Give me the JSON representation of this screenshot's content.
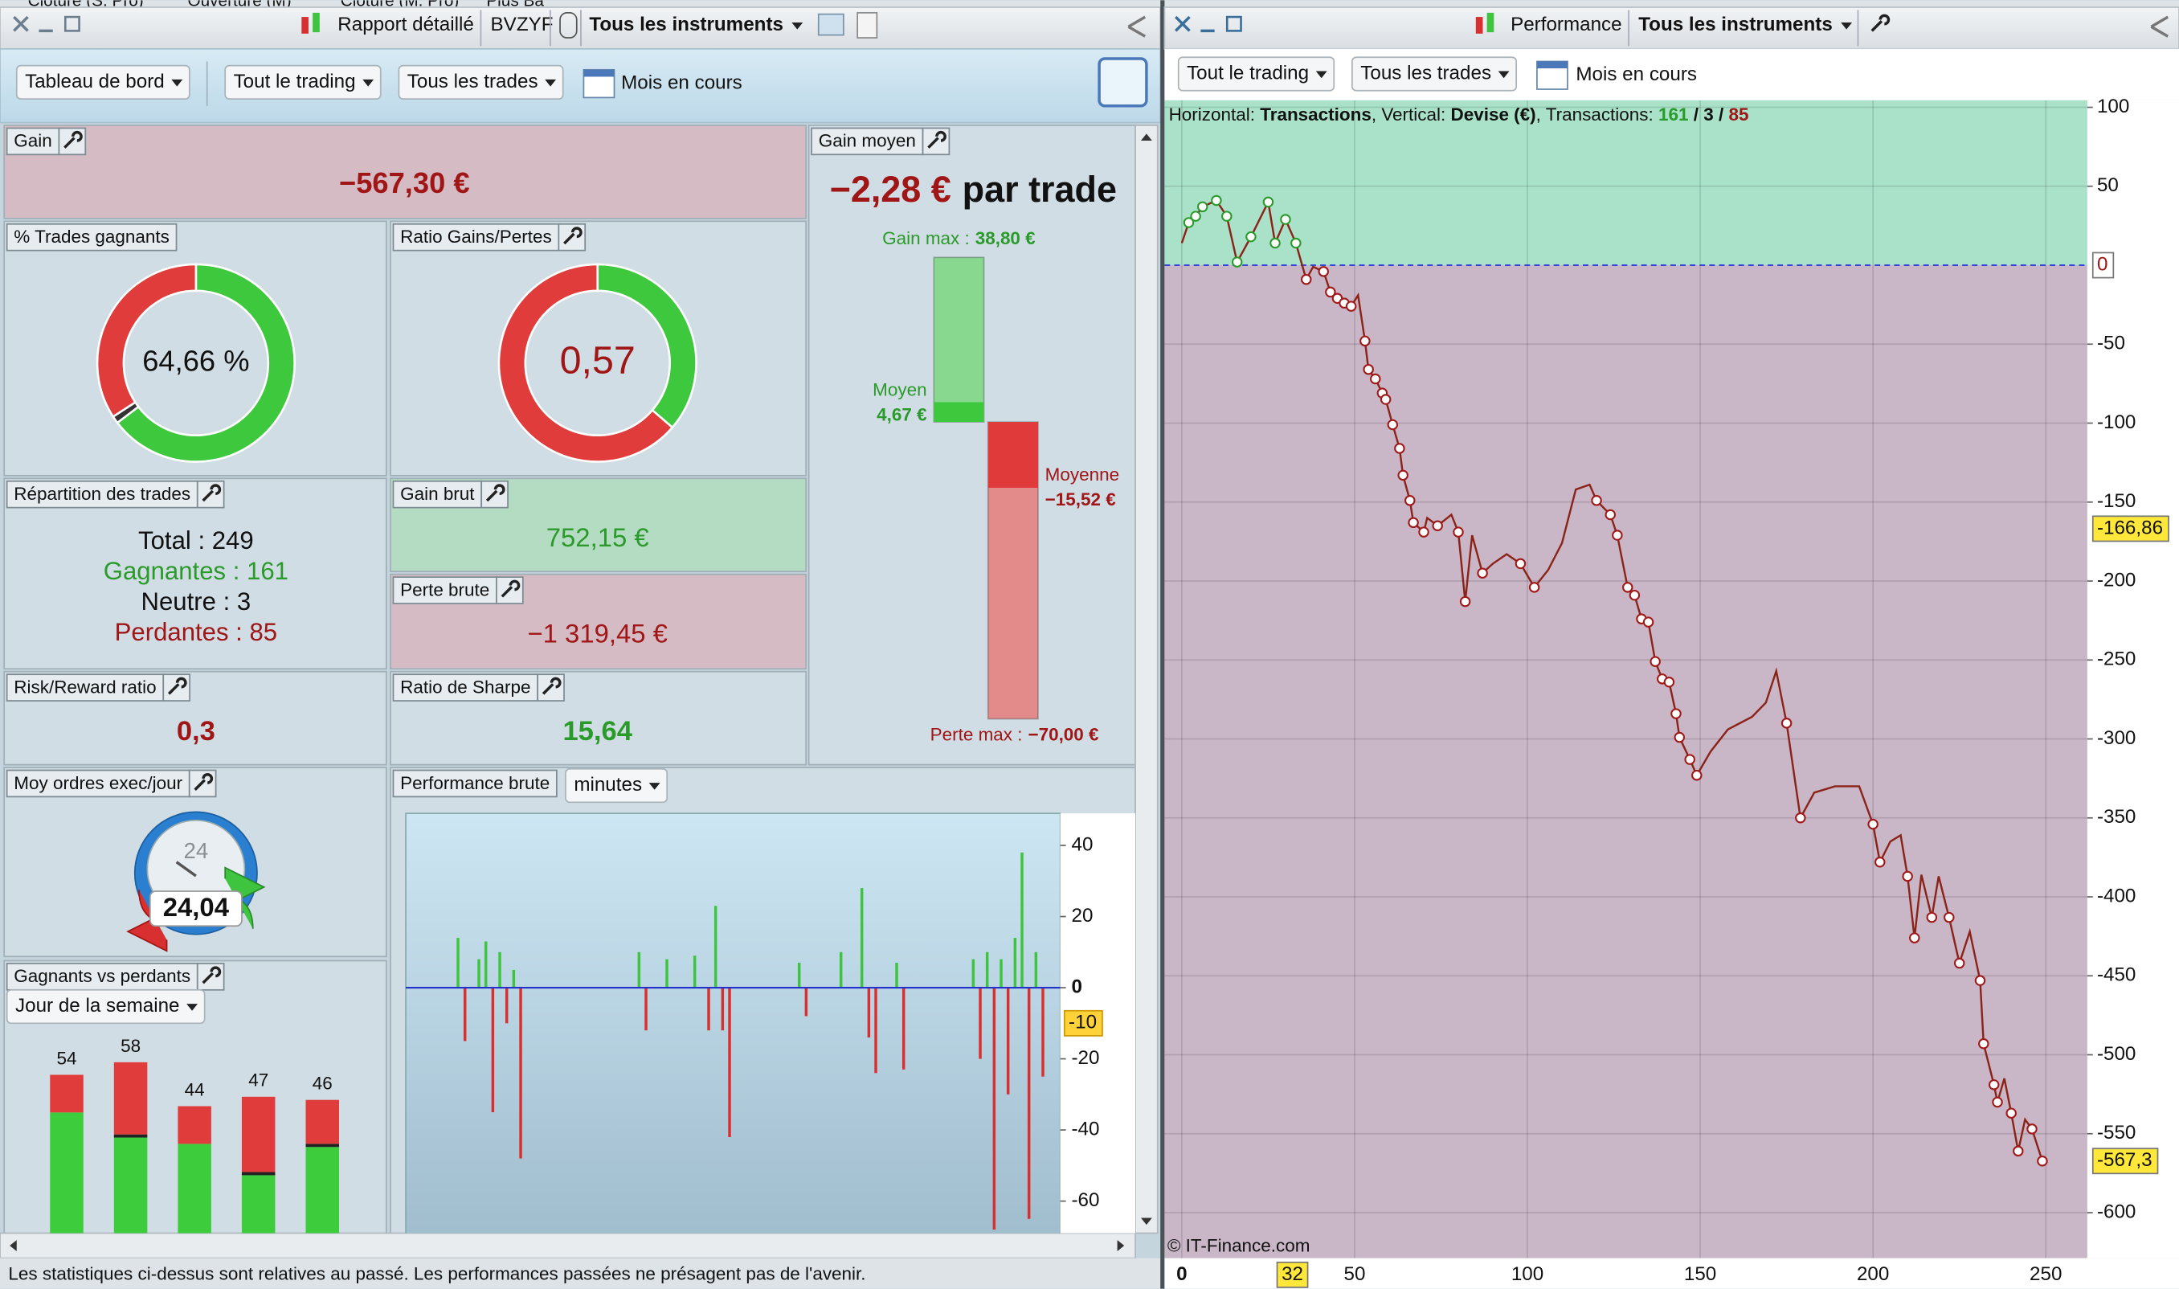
{
  "window_strip": [
    "Clôture (S. Pro)",
    "Ouverture (M)",
    "Clôture (M. Pro)",
    "Plus Ba"
  ],
  "left": {
    "tabs": [
      "Rapport détaillé",
      "BVZYF",
      "Tous les instruments"
    ],
    "filters": [
      "Tableau de bord",
      "Tout le trading",
      "Tous les trades"
    ],
    "period": "Mois en cours",
    "gain": {
      "title": "Gain",
      "value": "−567,30 €"
    },
    "gain_moyen": {
      "title": "Gain moyen",
      "value": "−2,28 €",
      "suffix": "par trade"
    },
    "win_rate": {
      "title": "% Trades gagnants"
    },
    "ratio": {
      "title": "Ratio Gains/Pertes"
    },
    "repartition": {
      "title": "Répartition des trades",
      "lines": [
        "Total : 249",
        "Gagnantes : 161",
        "Neutre : 3",
        "Perdantes : 85"
      ]
    },
    "gain_brut": {
      "title": "Gain brut",
      "value": "752,15 €"
    },
    "perte_brute": {
      "title": "Perte brute",
      "value": "−1 319,45 €"
    },
    "risk_reward": {
      "title": "Risk/Reward ratio",
      "value": "0,3"
    },
    "sharpe": {
      "title": "Ratio de Sharpe",
      "value": "15,64"
    },
    "orders": {
      "title": "Moy ordres exec/jour",
      "value": "24,04",
      "clock": "24"
    },
    "winners_losers": {
      "title": "Gagnants vs perdants",
      "selector": "Jour de la semaine"
    },
    "perf_brute": {
      "title": "Performance brute",
      "selector": "minutes"
    },
    "disclaimer": "Les statistiques ci-dessus sont relatives au passé. Les performances passées ne présagent pas de l'avenir."
  },
  "right": {
    "tab": "Performance",
    "instrument": "Tous les instruments",
    "filters": [
      "Tout le trading",
      "Tous les trades"
    ],
    "period": "Mois en cours",
    "info": [
      "Horizontal: ",
      "Transactions",
      ", Vertical: ",
      "Devise (€)",
      ", Transactions: ",
      "161",
      " / ",
      "3",
      " / ",
      "85"
    ],
    "copyright": "© IT-Finance.com"
  },
  "chart_data": [
    {
      "type": "line",
      "x": [
        0,
        2,
        4,
        6,
        10,
        13,
        16,
        20,
        25,
        27,
        30,
        33,
        36,
        38,
        41,
        43,
        45,
        47,
        49,
        51,
        53,
        54,
        56,
        58,
        59,
        61,
        63,
        64,
        66,
        67,
        70,
        71,
        74,
        78,
        80,
        82,
        84,
        87,
        90,
        94,
        98,
        102,
        106,
        110,
        114,
        118,
        120,
        124,
        126,
        129,
        131,
        133,
        135,
        137,
        139,
        141,
        143,
        144,
        147,
        149,
        153,
        158,
        165,
        169,
        172,
        175,
        179,
        183,
        189,
        196,
        200,
        202,
        205,
        208,
        210,
        212,
        214,
        217,
        219,
        222,
        225,
        228,
        231,
        232,
        235,
        236,
        238,
        240,
        242,
        244,
        246,
        249
      ],
      "series": [
        {
          "color": "#8c2318",
          "values": [
            14,
            27,
            31,
            37,
            41,
            31,
            2,
            18,
            40,
            14,
            29,
            14,
            -9,
            -1,
            -4,
            -17,
            -21,
            -24,
            -26,
            -19,
            -48,
            -66,
            -72,
            -81,
            -85,
            -101,
            -116,
            -133,
            -149,
            -163,
            -169,
            -160,
            -165,
            -158,
            -169,
            -213,
            -171,
            -195,
            -189,
            -183,
            -189,
            -204,
            -193,
            -176,
            -142,
            -139,
            -149,
            -158,
            -171,
            -204,
            -209,
            -224,
            -226,
            -251,
            -262,
            -264,
            -284,
            -299,
            -313,
            -323,
            -308,
            -294,
            -286,
            -277,
            -257,
            -290,
            -350,
            -334,
            -330,
            -330,
            -354,
            -378,
            -365,
            -361,
            -387,
            -426,
            -386,
            -413,
            -387,
            -413,
            -442,
            -422,
            -453,
            -493,
            -519,
            -530,
            -515,
            -537,
            -561,
            -541,
            -547,
            -567.3
          ]
        }
      ],
      "xlim": [
        -5,
        262
      ],
      "ylim": [
        -620,
        100
      ],
      "xticks": [
        0,
        50,
        100,
        150,
        200,
        250
      ],
      "yticks": [
        100,
        50,
        -50,
        -100,
        -150,
        -200,
        -250,
        -300,
        -350,
        -400,
        -450,
        -500,
        -550,
        -600
      ],
      "grid": true,
      "zero_label": {
        "value": 0,
        "label": "0"
      },
      "cursor_y": {
        "value": -166.86,
        "label": "-166,86"
      },
      "last_y": {
        "value": -567.3,
        "label": "-567,3"
      },
      "cursor_x": {
        "value": 32,
        "label": "32"
      },
      "zone_colors": {
        "gain": "#a9e2c9",
        "loss": "#c9b7c7"
      }
    },
    {
      "type": "bar",
      "values": [
        null,
        null,
        null,
        null,
        null,
        null,
        null,
        14,
        -15,
        null,
        8,
        13,
        -35,
        10,
        -10,
        5,
        -48,
        null,
        null,
        null,
        null,
        null,
        null,
        null,
        null,
        null,
        null,
        null,
        null,
        null,
        null,
        null,
        null,
        10,
        -12,
        null,
        null,
        8,
        null,
        null,
        null,
        9,
        null,
        -12,
        23,
        -12,
        -42,
        null,
        null,
        null,
        null,
        null,
        null,
        null,
        null,
        null,
        7,
        -8,
        null,
        null,
        null,
        null,
        10,
        null,
        null,
        28,
        -14,
        -24,
        null,
        null,
        7,
        -23,
        null,
        null,
        null,
        null,
        null,
        null,
        null,
        null,
        null,
        8,
        -20,
        10,
        -68,
        8,
        -30,
        14,
        38,
        -65,
        10,
        -25,
        null,
        null
      ],
      "colors": {
        "positive": "#3ec43e",
        "negative": "#d83030"
      },
      "ylim": [
        -69,
        49
      ],
      "yticks": [
        40,
        20,
        0,
        -20,
        -40,
        -60
      ],
      "marker": {
        "value": -10,
        "label": "-10"
      }
    },
    {
      "type": "stacked_bar",
      "categories": [
        null,
        null,
        null,
        null,
        null
      ],
      "series": [
        {
          "color": "#3ccc3c",
          "values": [
            42,
            34,
            32,
            22,
            31
          ]
        },
        {
          "color": "#222222",
          "values": [
            0,
            1,
            0,
            1,
            1
          ]
        },
        {
          "color": "#e03c3c",
          "values": [
            12,
            23,
            12,
            24,
            14
          ]
        }
      ],
      "totals": [
        54,
        58,
        44,
        47,
        46
      ],
      "ylim": [
        0,
        66
      ]
    },
    {
      "type": "donut",
      "values": [
        161,
        3,
        85
      ],
      "colors": [
        "#3ec83e",
        "#333333",
        "#e03c3c"
      ],
      "center_label": "64,66 %"
    },
    {
      "type": "donut",
      "values": [
        752.15,
        1319.45
      ],
      "colors": [
        "#3ec83e",
        "#e03c3c"
      ],
      "center_label": "0,57"
    },
    {
      "type": "range_bars",
      "labels": [
        "Gain max :",
        "Moyen",
        "Moyenne",
        "Perte max :"
      ],
      "values": [
        38.8,
        4.67,
        -15.52,
        -70
      ],
      "value_labels": [
        "38,80 €",
        "4,67 €",
        "−15,52 €",
        "−70,00 €"
      ],
      "colors": [
        "#88d890",
        "#3ec83e",
        "#e03a3a",
        "#e38b8b"
      ],
      "ylim": [
        -70,
        38.8
      ]
    }
  ]
}
